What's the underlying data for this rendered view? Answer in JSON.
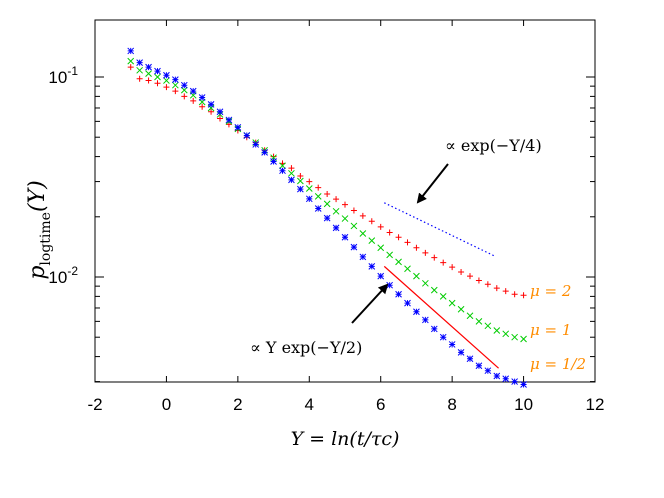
{
  "chart_data": {
    "type": "scatter",
    "title": "",
    "xlabel": "Y = ln(t/τc)",
    "ylabel": "p logtime (Y)",
    "ylabel_main": "p",
    "ylabel_sub": "logtime",
    "ylabel_arg": "(Y)",
    "xlim": [
      -2,
      12
    ],
    "ylim": [
      0.003,
      0.2
    ],
    "yscale": "log",
    "grid": false,
    "x_ticks": [
      -2,
      0,
      2,
      4,
      6,
      8,
      10,
      12
    ],
    "x_tick_labels": [
      "-2",
      "0",
      "2",
      "4",
      "6",
      "8",
      "10",
      "12"
    ],
    "y_tick_labels": [
      {
        "value": 0.1,
        "base": "10",
        "exp": "-1"
      },
      {
        "value": 0.01,
        "base": "10",
        "exp": "-2"
      }
    ],
    "series": [
      {
        "name": "μ = 2",
        "color": "#ff0000",
        "marker": "plus",
        "x": [
          -1.0,
          -0.75,
          -0.5,
          -0.25,
          0.0,
          0.25,
          0.5,
          0.75,
          1.0,
          1.25,
          1.5,
          1.75,
          2.0,
          2.25,
          2.5,
          2.75,
          3.0,
          3.25,
          3.5,
          3.75,
          4.0,
          4.25,
          4.5,
          4.75,
          5.0,
          5.25,
          5.5,
          5.75,
          6.0,
          6.25,
          6.5,
          6.75,
          7.0,
          7.25,
          7.5,
          7.75,
          8.0,
          8.25,
          8.5,
          8.75,
          9.0,
          9.25,
          9.5,
          9.75,
          10.0
        ],
        "y": [
          0.112,
          0.098,
          0.096,
          0.093,
          0.089,
          0.085,
          0.08,
          0.076,
          0.071,
          0.067,
          0.062,
          0.058,
          0.054,
          0.05,
          0.047,
          0.043,
          0.04,
          0.037,
          0.035,
          0.032,
          0.03,
          0.028,
          0.026,
          0.0245,
          0.023,
          0.0215,
          0.0202,
          0.019,
          0.0178,
          0.0167,
          0.0158,
          0.0149,
          0.014,
          0.0132,
          0.0125,
          0.0118,
          0.0112,
          0.0106,
          0.0101,
          0.0096,
          0.0092,
          0.0088,
          0.0085,
          0.0082,
          0.0081
        ]
      },
      {
        "name": "μ = 1",
        "color": "#00cc00",
        "marker": "cross",
        "x": [
          -1.0,
          -0.75,
          -0.5,
          -0.25,
          0.0,
          0.25,
          0.5,
          0.75,
          1.0,
          1.25,
          1.5,
          1.75,
          2.0,
          2.25,
          2.5,
          2.75,
          3.0,
          3.25,
          3.5,
          3.75,
          4.0,
          4.25,
          4.5,
          4.75,
          5.0,
          5.25,
          5.5,
          5.75,
          6.0,
          6.25,
          6.5,
          6.75,
          7.0,
          7.25,
          7.5,
          7.75,
          8.0,
          8.25,
          8.5,
          8.75,
          9.0,
          9.25,
          9.5,
          9.75,
          10.0
        ],
        "y": [
          0.12,
          0.108,
          0.104,
          0.1,
          0.096,
          0.091,
          0.086,
          0.081,
          0.075,
          0.07,
          0.065,
          0.06,
          0.055,
          0.051,
          0.047,
          0.043,
          0.0395,
          0.036,
          0.033,
          0.0302,
          0.0277,
          0.0253,
          0.0232,
          0.0213,
          0.0196,
          0.018,
          0.0165,
          0.0152,
          0.014,
          0.0129,
          0.0119,
          0.011,
          0.0101,
          0.0093,
          0.0086,
          0.008,
          0.0074,
          0.0069,
          0.0064,
          0.006,
          0.0057,
          0.0054,
          0.0052,
          0.005,
          0.0049
        ]
      },
      {
        "name": "μ = 1/2",
        "color": "#0000ff",
        "marker": "star",
        "x": [
          -1.0,
          -0.75,
          -0.5,
          -0.25,
          0.0,
          0.25,
          0.5,
          0.75,
          1.0,
          1.25,
          1.5,
          1.75,
          2.0,
          2.25,
          2.5,
          2.75,
          3.0,
          3.25,
          3.5,
          3.75,
          4.0,
          4.25,
          4.5,
          4.75,
          5.0,
          5.25,
          5.5,
          5.75,
          6.0,
          6.25,
          6.5,
          6.75,
          7.0,
          7.25,
          7.5,
          7.75,
          8.0,
          8.25,
          8.5,
          8.75,
          9.0,
          9.25,
          9.5,
          9.75,
          10.0
        ],
        "y": [
          0.135,
          0.118,
          0.112,
          0.107,
          0.102,
          0.097,
          0.091,
          0.085,
          0.079,
          0.073,
          0.067,
          0.061,
          0.056,
          0.051,
          0.046,
          0.042,
          0.0378,
          0.034,
          0.0306,
          0.0275,
          0.0246,
          0.022,
          0.0197,
          0.0176,
          0.0158,
          0.0141,
          0.0126,
          0.0113,
          0.0101,
          0.0091,
          0.0082,
          0.0074,
          0.0067,
          0.0061,
          0.0055,
          0.005,
          0.0046,
          0.0042,
          0.0039,
          0.0036,
          0.0034,
          0.0032,
          0.0031,
          0.003,
          0.0029
        ]
      }
    ],
    "reference_lines": [
      {
        "label": "∝ exp(−Y/4)",
        "style": "dotted",
        "color": "#0000ff",
        "x": [
          6.1,
          9.2
        ],
        "y": [
          0.0235,
          0.0127
        ]
      },
      {
        "label": "∝ Y exp(−Y/2)",
        "style": "solid",
        "color": "#ff0000",
        "x": [
          6.1,
          9.3
        ],
        "y": [
          0.0113,
          0.0035
        ]
      }
    ],
    "annotations": [
      {
        "text_prefix": "∝ exp",
        "text_args": "(−Y/4)"
      },
      {
        "text_prefix": "∝ Y exp",
        "text_args": "(−Y/2)"
      }
    ],
    "series_label_color": "#ff8c00"
  }
}
